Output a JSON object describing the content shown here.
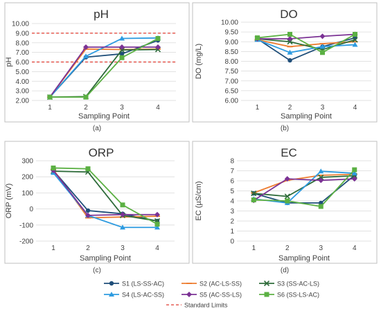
{
  "figure": {
    "legend": {
      "series": [
        {
          "name": "S1 (LS-SS-AC)",
          "color": "#1F4E79",
          "marker": "circle"
        },
        {
          "name": "S2 (AC-LS-SS)",
          "color": "#ED7D31",
          "marker": "dash"
        },
        {
          "name": "S3 (SS-AC-LS)",
          "color": "#2E6B3A",
          "marker": "x"
        },
        {
          "name": "S4 (LS-AC-SS)",
          "color": "#2E9BE0",
          "marker": "triangle"
        },
        {
          "name": "S5 (AC-SS-LS)",
          "color": "#7B3294",
          "marker": "diamond"
        },
        {
          "name": "S6 (SS-LS-AC)",
          "color": "#5BB043",
          "marker": "square"
        }
      ],
      "limit_label": "Standard Limits",
      "limit_color": "#E03C31"
    }
  },
  "chart_data": [
    {
      "type": "line",
      "panel_label": "(a)",
      "title": "pH",
      "xlabel": "Sampling Point",
      "ylabel": "pH",
      "x": [
        1,
        2,
        3,
        4
      ],
      "xticks": [
        "1",
        "2",
        "3",
        "4"
      ],
      "ylim": [
        2.0,
        10.0
      ],
      "yticks": [
        "2.00",
        "3.00",
        "4.00",
        "5.00",
        "6.00",
        "7.00",
        "8.00",
        "9.00",
        "10.00"
      ],
      "limits": [
        6.0,
        9.0
      ],
      "series": [
        {
          "name": "S1 (LS-SS-AC)",
          "values": [
            2.35,
            6.5,
            6.85,
            8.25
          ]
        },
        {
          "name": "S2 (AC-LS-SS)",
          "values": [
            2.35,
            7.35,
            7.3,
            7.35
          ]
        },
        {
          "name": "S3 (SS-AC-LS)",
          "values": [
            2.35,
            2.4,
            7.25,
            7.3
          ]
        },
        {
          "name": "S4 (LS-AC-SS)",
          "values": [
            2.35,
            6.6,
            8.45,
            8.5
          ]
        },
        {
          "name": "S5 (AC-SS-LS)",
          "values": [
            2.35,
            7.55,
            7.55,
            7.55
          ]
        },
        {
          "name": "S6 (SS-LS-AC)",
          "values": [
            2.35,
            2.35,
            6.45,
            8.45
          ]
        }
      ]
    },
    {
      "type": "line",
      "panel_label": "(b)",
      "title": "DO",
      "xlabel": "Sampling Point",
      "ylabel": "DO (mg/L)",
      "x": [
        1,
        2,
        3,
        4
      ],
      "xticks": [
        "1",
        "2",
        "3",
        "4"
      ],
      "ylim": [
        6.0,
        10.0
      ],
      "yticks": [
        "6.00",
        "6.50",
        "7.00",
        "7.50",
        "8.00",
        "8.50",
        "9.00",
        "9.50",
        "10.00"
      ],
      "series": [
        {
          "name": "S1 (LS-SS-AC)",
          "values": [
            9.15,
            8.05,
            8.75,
            9.2
          ]
        },
        {
          "name": "S2 (AC-LS-SS)",
          "values": [
            9.1,
            8.75,
            8.9,
            9.0
          ]
        },
        {
          "name": "S3 (SS-AC-LS)",
          "values": [
            9.15,
            9.0,
            8.6,
            9.1
          ]
        },
        {
          "name": "S4 (LS-AC-SS)",
          "values": [
            9.1,
            8.45,
            8.75,
            8.85
          ]
        },
        {
          "name": "S5 (AC-SS-LS)",
          "values": [
            9.15,
            9.15,
            9.28,
            9.38
          ]
        },
        {
          "name": "S6 (SS-LS-AC)",
          "values": [
            9.2,
            9.38,
            8.45,
            9.38
          ]
        }
      ]
    },
    {
      "type": "line",
      "panel_label": "(c)",
      "title": "ORP",
      "xlabel": "Sampling Point",
      "ylabel": "ORP (mV)",
      "x": [
        1,
        2,
        3,
        4
      ],
      "xticks": [
        "1",
        "2",
        "3",
        "4"
      ],
      "ylim": [
        -200,
        300
      ],
      "yticks": [
        "300",
        "200",
        "100",
        "0",
        "-100",
        "-200"
      ],
      "series": [
        {
          "name": "S1 (LS-SS-AC)",
          "values": [
            240,
            -10,
            -30,
            -75
          ]
        },
        {
          "name": "S2 (AC-LS-SS)",
          "values": [
            245,
            -55,
            -50,
            -45
          ]
        },
        {
          "name": "S3 (SS-AC-LS)",
          "values": [
            235,
            230,
            -40,
            -75
          ]
        },
        {
          "name": "S4 (LS-AC-SS)",
          "values": [
            225,
            -40,
            -115,
            -115
          ]
        },
        {
          "name": "S5 (AC-SS-LS)",
          "values": [
            240,
            -40,
            -35,
            -35
          ]
        },
        {
          "name": "S6 (SS-LS-AC)",
          "values": [
            255,
            250,
            25,
            -95
          ]
        }
      ]
    },
    {
      "type": "line",
      "panel_label": "(d)",
      "title": "EC",
      "xlabel": "Sampling Point",
      "ylabel": "EC (µS/cm)",
      "x": [
        1,
        2,
        3,
        4
      ],
      "xticks": [
        "1",
        "2",
        "3",
        "4"
      ],
      "ylim": [
        0,
        8
      ],
      "yticks": [
        "8",
        "7",
        "6",
        "5",
        "4",
        "3",
        "2",
        "1",
        "0"
      ],
      "series": [
        {
          "name": "S1 (LS-SS-AC)",
          "values": [
            4.75,
            3.8,
            3.8,
            6.55
          ]
        },
        {
          "name": "S2 (AC-LS-SS)",
          "values": [
            4.8,
            6.05,
            6.55,
            6.65
          ]
        },
        {
          "name": "S3 (SS-AC-LS)",
          "values": [
            4.75,
            4.45,
            6.35,
            6.5
          ]
        },
        {
          "name": "S4 (LS-AC-SS)",
          "values": [
            4.2,
            3.8,
            6.95,
            6.75
          ]
        },
        {
          "name": "S5 (AC-SS-LS)",
          "values": [
            4.05,
            6.2,
            6.05,
            6.2
          ]
        },
        {
          "name": "S6 (SS-LS-AC)",
          "values": [
            4.1,
            4.0,
            3.45,
            7.1
          ]
        }
      ]
    }
  ]
}
